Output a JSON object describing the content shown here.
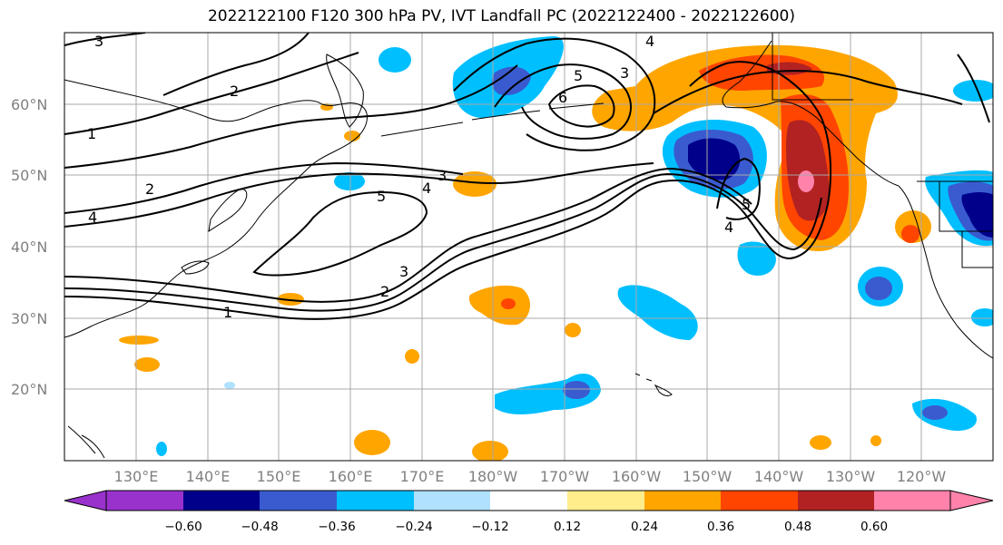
{
  "title": "2022122100 F120 300 hPa PV, IVT Landfall PC (2022122400 - 2022122600)",
  "map": {
    "lat_labels": [
      "60°N",
      "50°N",
      "40°N",
      "30°N",
      "20°N"
    ],
    "lon_labels": [
      "130°E",
      "140°E",
      "150°E",
      "160°E",
      "170°E",
      "180°W",
      "170°W",
      "160°W",
      "150°W",
      "140°W",
      "130°W",
      "120°W"
    ],
    "gridlines": true,
    "contour_labels": [
      "3",
      "2",
      "1",
      "2",
      "4",
      "3",
      "4",
      "5",
      "6",
      "5",
      "3",
      "4",
      "5",
      "4",
      "3",
      "2",
      "1"
    ]
  },
  "colorbar": {
    "tick_labels": [
      "−0.60",
      "−0.48",
      "−0.36",
      "−0.24",
      "−0.12",
      "0.12",
      "0.24",
      "0.36",
      "0.48",
      "0.60"
    ],
    "colors": [
      "#9932cc",
      "#00008b",
      "#3a5bd0",
      "#00bfff",
      "#b0e2ff",
      "#ffffff",
      "#ffec8b",
      "#ffa500",
      "#ff4500",
      "#b22222",
      "#ff82ab"
    ]
  }
}
